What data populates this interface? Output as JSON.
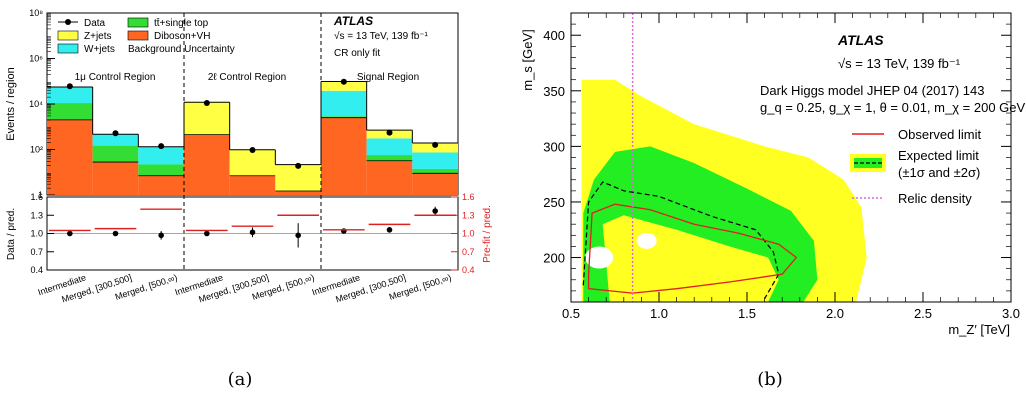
{
  "chart_data": [
    {
      "type": "bar",
      "stacked": true,
      "log_y": true,
      "panel_label": "(a)",
      "ylabel": "Events / region",
      "ylim": [
        1,
        100000000
      ],
      "y_ticks": [
        "1",
        "10²",
        "10⁴",
        "10⁶",
        "10⁸"
      ],
      "atlas_label": "ATLAS",
      "energy_label": "√s = 13 TeV, 139 fb⁻¹",
      "fit_label": "CR only fit",
      "region_labels": [
        "1μ Control Region",
        "2ℓ Control Region",
        "Signal Region"
      ],
      "categories": [
        "Intermediate",
        "Merged, [300,500]",
        "Merged, [500,∞)",
        "Intermediate",
        "Merged, [300,500]",
        "Merged, [500,∞)",
        "Intermediate",
        "Merged, [300,500]",
        "Merged, [500,∞)"
      ],
      "legend": [
        {
          "label": "Data",
          "marker": "dot"
        },
        {
          "label": "Z+jets",
          "color": "#ffff44"
        },
        {
          "label": "W+jets",
          "color": "#33eeee"
        },
        {
          "label": "tt̄+single top",
          "color": "#33dd33"
        },
        {
          "label": "Diboson+VH",
          "color": "#ff6622"
        },
        {
          "label": "Background Uncertainty",
          "color": "#ffffff"
        }
      ],
      "series": [
        {
          "name": "Diboson+VH",
          "color": "#ff6622",
          "values": [
            2000,
            28,
            7,
            450,
            7,
            1.5,
            2500,
            32,
            9
          ]
        },
        {
          "name": "tt̄+single top",
          "color": "#33dd33",
          "values": [
            9000,
            120,
            15,
            0,
            0,
            0,
            400,
            25,
            5
          ]
        },
        {
          "name": "W+jets",
          "color": "#33eeee",
          "values": [
            45000,
            320,
            110,
            0,
            0,
            0,
            35000,
            250,
            60
          ]
        },
        {
          "name": "Z+jets",
          "color": "#ffff44",
          "values": [
            0,
            0,
            0,
            11500,
            90,
            20,
            60000,
            400,
            120
          ]
        }
      ],
      "data_points": [
        60000,
        520,
        140,
        11000,
        95,
        19,
        95000,
        550,
        160
      ],
      "ratio_panel": {
        "ylabel": "Data / pred.",
        "ylabel_right": "Pre-fit / pred.",
        "ylim": [
          0.4,
          1.6
        ],
        "y_ticks": [
          "0.4",
          "0.7",
          "1.0",
          "1.3",
          "1.6"
        ],
        "data_over_pred": [
          1.0,
          1.0,
          0.97,
          1.0,
          1.02,
          0.97,
          1.04,
          1.06,
          1.37
        ],
        "data_errors": [
          0.01,
          0.02,
          0.07,
          0.02,
          0.08,
          0.2,
          0.01,
          0.03,
          0.07
        ],
        "prefit_over_pred": [
          1.05,
          1.08,
          1.4,
          1.05,
          1.12,
          1.3,
          1.06,
          1.15,
          1.3
        ]
      }
    },
    {
      "type": "contour",
      "panel_label": "(b)",
      "xlabel": "m_Z′ [TeV]",
      "ylabel": "m_s [GeV]",
      "xlim": [
        0.5,
        3.0
      ],
      "ylim": [
        160,
        420
      ],
      "x_ticks": [
        "0.5",
        "1.0",
        "1.5",
        "2.0",
        "2.5",
        "3.0"
      ],
      "y_ticks": [
        "200",
        "250",
        "300",
        "350",
        "400"
      ],
      "atlas_label": "ATLAS",
      "energy_label": "√s = 13 TeV, 139 fb⁻¹",
      "model_label": "Dark Higgs model JHEP 04 (2017) 143",
      "param_label": "g_q = 0.25, g_χ = 1, θ = 0.01, m_χ = 200 GeV",
      "legend": [
        {
          "label": "Observed limit",
          "color": "#e02020"
        },
        {
          "label": "Expected limit",
          "label2": "(±1σ and ±2σ)",
          "color": "#000000"
        },
        {
          "label": "Relic density",
          "color": "#dd66dd"
        }
      ],
      "relic_density_x": 0.85,
      "band_2sigma": [
        [
          0.56,
          160
        ],
        [
          0.56,
          360
        ],
        [
          0.75,
          360
        ],
        [
          0.9,
          345
        ],
        [
          1.2,
          320
        ],
        [
          1.6,
          300
        ],
        [
          1.85,
          290
        ],
        [
          2.05,
          270
        ],
        [
          2.15,
          245
        ],
        [
          2.18,
          200
        ],
        [
          2.12,
          160
        ]
      ],
      "band_1sigma": [
        [
          0.57,
          160
        ],
        [
          0.57,
          240
        ],
        [
          0.63,
          270
        ],
        [
          0.75,
          295
        ],
        [
          0.95,
          300
        ],
        [
          1.2,
          285
        ],
        [
          1.5,
          262
        ],
        [
          1.75,
          242
        ],
        [
          1.88,
          215
        ],
        [
          1.9,
          180
        ],
        [
          1.82,
          160
        ]
      ],
      "band_1sigma_inner": [
        [
          0.72,
          160
        ],
        [
          0.68,
          230
        ],
        [
          0.8,
          238
        ],
        [
          1.1,
          225
        ],
        [
          1.4,
          210
        ],
        [
          1.62,
          200
        ],
        [
          1.68,
          180
        ],
        [
          1.62,
          160
        ]
      ],
      "expected_limit": [
        [
          0.57,
          175
        ],
        [
          0.6,
          250
        ],
        [
          0.68,
          268
        ],
        [
          0.8,
          260
        ],
        [
          1.0,
          255
        ],
        [
          1.3,
          237
        ],
        [
          1.55,
          225
        ],
        [
          1.65,
          205
        ],
        [
          1.68,
          185
        ],
        [
          1.6,
          163
        ]
      ],
      "observed_limit": [
        [
          0.6,
          185
        ],
        [
          0.62,
          240
        ],
        [
          0.75,
          248
        ],
        [
          0.95,
          243
        ],
        [
          1.2,
          230
        ],
        [
          1.45,
          222
        ],
        [
          1.68,
          212
        ],
        [
          1.78,
          200
        ],
        [
          1.7,
          185
        ],
        [
          1.4,
          178
        ],
        [
          1.1,
          172
        ],
        [
          0.85,
          168
        ],
        [
          0.6,
          172
        ]
      ]
    }
  ]
}
